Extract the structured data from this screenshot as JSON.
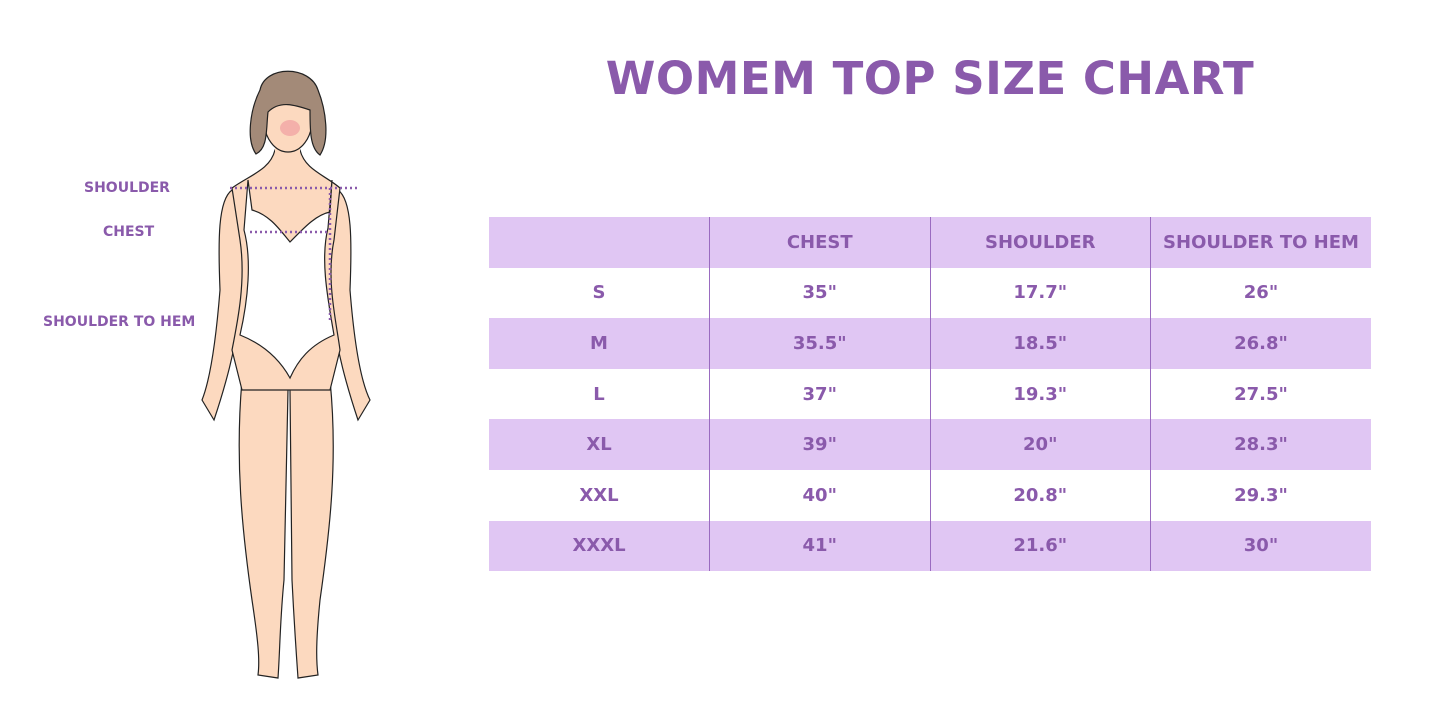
{
  "title": "WOMEM TOP SIZE CHART",
  "figure_labels": {
    "shoulder": "SHOULDER",
    "chest": "CHEST",
    "shoulder_to_hem": "SHOULDER TO HEM"
  },
  "colors": {
    "accent": "#8a5aab",
    "row_shade": "#e0c6f3",
    "skin": "#fcd9bf",
    "hair": "#a38a78"
  },
  "chart_data": {
    "type": "table",
    "title": "WOMEM TOP SIZE CHART",
    "columns": [
      "",
      "CHEST",
      "SHOULDER",
      "SHOULDER TO HEM"
    ],
    "rows": [
      [
        "S",
        "35\"",
        "17.7\"",
        "26\""
      ],
      [
        "M",
        "35.5\"",
        "18.5\"",
        "26.8\""
      ],
      [
        "L",
        "37\"",
        "19.3\"",
        "27.5\""
      ],
      [
        "XL",
        "39\"",
        "20\"",
        "28.3\""
      ],
      [
        "XXL",
        "40\"",
        "20.8\"",
        "29.3\""
      ],
      [
        "XXXL",
        "41\"",
        "21.6\"",
        "30\""
      ]
    ]
  }
}
